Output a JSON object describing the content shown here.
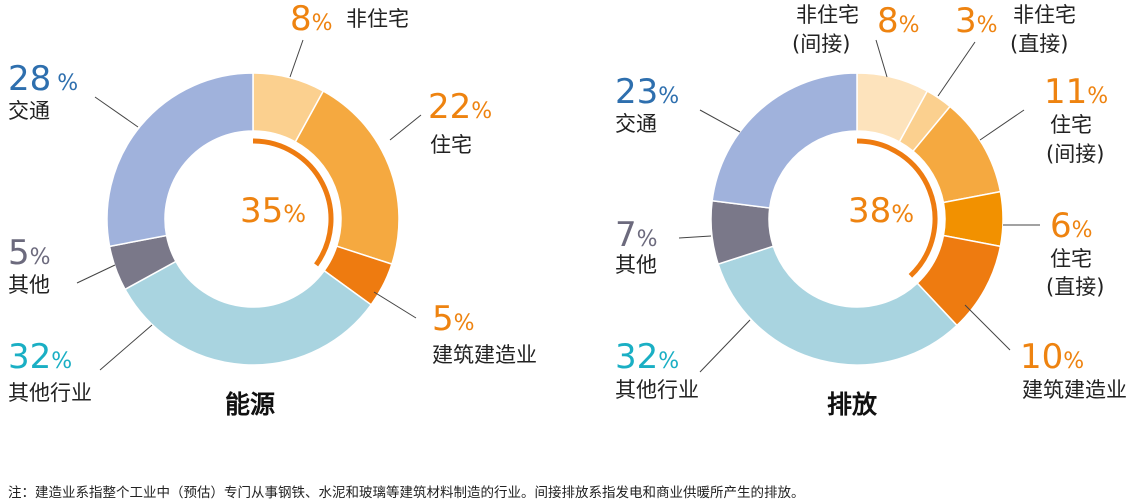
{
  "chart_data": [
    {
      "type": "donut",
      "title": "能源",
      "center_label": "35%",
      "slices": [
        {
          "label": "非住宅",
          "value": 8,
          "pct_text": "8",
          "color": "#FBD08F"
        },
        {
          "label": "住宅",
          "value": 22,
          "pct_text": "22",
          "color": "#F5A940"
        },
        {
          "label": "建筑建造业",
          "value": 5,
          "pct_text": "5",
          "color": "#EE7B10"
        },
        {
          "label": "其他行业",
          "value": 32,
          "pct_text": "32",
          "color": "#A9D4E0"
        },
        {
          "label": "其他",
          "value": 5,
          "pct_text": "5",
          "color": "#7A7889"
        },
        {
          "label": "交通",
          "value": 28,
          "pct_text": "28",
          "color": "#A0B2DC"
        }
      ]
    },
    {
      "type": "donut",
      "title": "排放",
      "center_label": "38%",
      "slices": [
        {
          "label": "非住宅 (间接)",
          "value": 8,
          "pct_text": "8",
          "color": "#FDE3BC"
        },
        {
          "label": "非住宅 (直接)",
          "value": 3,
          "pct_text": "3",
          "color": "#FBD08F"
        },
        {
          "label": "住宅 (间接)",
          "value": 11,
          "pct_text": "11",
          "color": "#F5A940"
        },
        {
          "label": "住宅 (直接)",
          "value": 6,
          "pct_text": "6",
          "color": "#F29100"
        },
        {
          "label": "建筑建造业",
          "value": 10,
          "pct_text": "10",
          "color": "#EE7B10"
        },
        {
          "label": "其他行业",
          "value": 32,
          "pct_text": "32",
          "color": "#A9D4E0"
        },
        {
          "label": "其他",
          "value": 7,
          "pct_text": "7",
          "color": "#7A7889"
        },
        {
          "label": "交通",
          "value": 23,
          "pct_text": "23",
          "color": "#A0B2DC"
        }
      ]
    }
  ],
  "labels": {
    "left": {
      "title": "能源",
      "center_num": "35",
      "non_res_pct": "8",
      "non_res": "非住宅",
      "res_pct": "22",
      "res": "住宅",
      "construction_pct": "5",
      "construction": "建筑建造业",
      "other_ind_pct": "32",
      "other_ind": "其他行业",
      "other_pct": "5",
      "other": "其他",
      "transport_pct": "28",
      "transport": "交通"
    },
    "right": {
      "title": "排放",
      "center_num": "38",
      "non_res_ind_pct": "8",
      "non_res_ind_1": "非住宅",
      "non_res_ind_2": "(间接)",
      "non_res_dir_pct": "3",
      "non_res_dir_1": "非住宅",
      "non_res_dir_2": "(直接)",
      "res_ind_pct": "11",
      "res_ind_1": "住宅",
      "res_ind_2": "(间接)",
      "res_dir_pct": "6",
      "res_dir_1": "住宅",
      "res_dir_2": "(直接)",
      "construction_pct": "10",
      "construction": "建筑建造业",
      "other_ind_pct": "32",
      "other_ind": "其他行业",
      "other_pct": "7",
      "other": "其他",
      "transport_pct": "23",
      "transport": "交通"
    },
    "percent_sign": "%"
  },
  "colors": {
    "orange_text": "#EE8310",
    "blue_text": "#2E6FAE",
    "teal_text": "#1AAFC4",
    "gray_text": "#6C6A7D",
    "bracket": "#EE7B10"
  },
  "note": "注：建造业系指整个工业中（预估）专门从事钢铁、水泥和玻璃等建筑材料制造的行业。间接排放系指发电和商业供暖所产生的排放。"
}
